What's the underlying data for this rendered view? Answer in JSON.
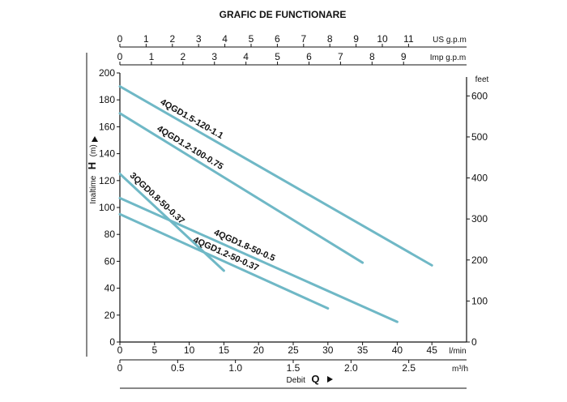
{
  "chart_data": {
    "type": "line",
    "title": "GRAFIC DE FUNCTIONARE",
    "x_axes": {
      "lmin": {
        "unit": "l/min",
        "ticks": [
          "0",
          "5",
          "10",
          "15",
          "20",
          "25",
          "30",
          "35",
          "40",
          "45"
        ],
        "range": [
          0,
          50
        ]
      },
      "m3h": {
        "unit": "m³/h",
        "ticks": [
          "0",
          "0.5",
          "1.0",
          "1.5",
          "2.0",
          "2.5"
        ],
        "range": [
          0,
          3.0
        ]
      },
      "usgpm": {
        "unit": "US g.p.m",
        "ticks": [
          "0",
          "1",
          "2",
          "3",
          "4",
          "5",
          "6",
          "7",
          "8",
          "9",
          "10",
          "11"
        ]
      },
      "impgpm": {
        "unit": "Imp g.p.m",
        "ticks": [
          "0",
          "1",
          "2",
          "3",
          "4",
          "5",
          "6",
          "7",
          "8",
          "9"
        ]
      }
    },
    "y_axes": {
      "m": {
        "label_prefix": "Inaltime",
        "label_var": "H",
        "label_unit": "(m)",
        "ticks": [
          "0",
          "20",
          "40",
          "60",
          "80",
          "100",
          "120",
          "140",
          "160",
          "180",
          "200"
        ],
        "range": [
          0,
          200
        ]
      },
      "feet": {
        "unit": "feet",
        "ticks": [
          "0",
          "100",
          "200",
          "300",
          "400",
          "500",
          "600"
        ],
        "range": [
          0,
          656
        ]
      }
    },
    "xlabel": {
      "prefix": "Debit",
      "var": "Q"
    },
    "series": [
      {
        "name": "4QGD1.5-120-1.1",
        "x": [
          0,
          45
        ],
        "y": [
          190,
          57
        ]
      },
      {
        "name": "4QGD1.2-100-0.75",
        "x": [
          0,
          35
        ],
        "y": [
          170,
          59
        ]
      },
      {
        "name": "3QGD0.8-50-0.37",
        "x": [
          0,
          15
        ],
        "y": [
          125,
          53
        ]
      },
      {
        "name": "4QGD1.8-50-0.5",
        "x": [
          0,
          40
        ],
        "y": [
          107,
          15
        ]
      },
      {
        "name": "4QGD1.2-50-0.37",
        "x": [
          0,
          30
        ],
        "y": [
          95,
          25
        ]
      }
    ],
    "colors": {
      "curve": "#6fb8c6",
      "axis": "#111111"
    },
    "grid": false,
    "legend": "none"
  }
}
